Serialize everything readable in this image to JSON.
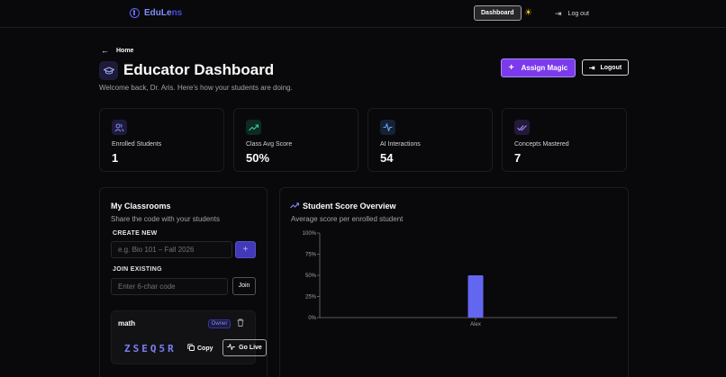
{
  "topbar": {
    "brand_a": "EduLe",
    "brand_b": "ns",
    "dashboard_label": "Dashboard",
    "logout_label": "Log out"
  },
  "header": {
    "home_label": "Home",
    "title": "Educator Dashboard",
    "subtitle": "Welcome back, Dr. Aris. Here's how your students are doing.",
    "assign_label": "Assign Magic",
    "logout_label": "Logout"
  },
  "stats": [
    {
      "label": "Enrolled Students",
      "value": "1",
      "icon": "users-icon",
      "color": "#818cf8"
    },
    {
      "label": "Class Avg Score",
      "value": "50%",
      "icon": "trending-up-icon",
      "color": "#34d399"
    },
    {
      "label": "AI Interactions",
      "value": "54",
      "icon": "activity-icon",
      "color": "#60a5fa"
    },
    {
      "label": "Concepts Mastered",
      "value": "7",
      "icon": "check-check-icon",
      "color": "#a78bfa"
    }
  ],
  "classrooms": {
    "title": "My Classrooms",
    "subtitle": "Share the code with your students",
    "create_label": "CREATE NEW",
    "create_placeholder": "e.g. Bio 101 – Fall 2026",
    "join_label": "JOIN EXISTING",
    "join_placeholder": "Enter 6-char code",
    "join_button": "Join",
    "class": {
      "name": "math",
      "badge": "Owner",
      "code": "ZSEQ5R",
      "copy_label": "Copy",
      "golive_label": "Go Live"
    }
  },
  "overview": {
    "title": "Student Score Overview",
    "subtitle": "Average score per enrolled student"
  },
  "chart_data": {
    "type": "bar",
    "categories": [
      "Alex"
    ],
    "values": [
      50
    ],
    "ylim": [
      0,
      100
    ],
    "yticks": [
      "0%",
      "25%",
      "50%",
      "75%",
      "100%"
    ],
    "bar_color": "#6366f1",
    "grid": false
  },
  "colors": {
    "accent": "#7c3aed",
    "brand": "#6366f1",
    "background": "#09090b"
  }
}
